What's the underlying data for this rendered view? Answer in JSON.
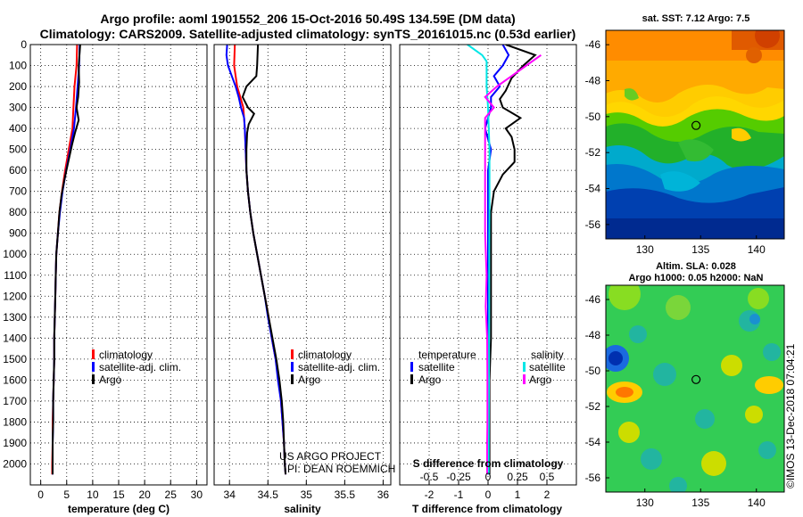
{
  "header": {
    "line1": "Argo profile: aoml 1901552_206 15-Oct-2016 50.49S 134.59E (DM data)",
    "line2": "Climatology: CARS2009. Satellite-adjusted climatology: synTS_20161015.nc (0.53d earlier)"
  },
  "depth_ticks": [
    "0",
    "100",
    "200",
    "300",
    "400",
    "500",
    "600",
    "700",
    "800",
    "900",
    "1000",
    "1100",
    "1200",
    "1300",
    "1400",
    "1500",
    "1600",
    "1700",
    "1800",
    "1900",
    "2000"
  ],
  "chart_data": [
    {
      "type": "line",
      "name": "temperature-panel",
      "xlabel": "temperature (deg C)",
      "ylabel": "",
      "xlim": [
        -2,
        32
      ],
      "ylim": [
        2100,
        0
      ],
      "xticks": [
        0,
        5,
        10,
        15,
        20,
        25,
        30
      ],
      "legend": {
        "placement": "lower-center",
        "entries": [
          "climatology",
          "satellite-adj. clim.",
          "Argo"
        ]
      },
      "series": [
        {
          "name": "climatology",
          "color": "#ff0000",
          "points": [
            [
              7.0,
              0
            ],
            [
              6.9,
              100
            ],
            [
              6.5,
              200
            ],
            [
              6.3,
              300
            ],
            [
              6.1,
              400
            ],
            [
              5.4,
              500
            ],
            [
              4.7,
              600
            ],
            [
              4.1,
              700
            ],
            [
              3.6,
              800
            ],
            [
              3.3,
              900
            ],
            [
              3.0,
              1000
            ],
            [
              2.9,
              1100
            ],
            [
              2.8,
              1200
            ],
            [
              2.7,
              1300
            ],
            [
              2.6,
              1400
            ],
            [
              2.6,
              1500
            ],
            [
              2.5,
              1600
            ],
            [
              2.4,
              1700
            ],
            [
              2.3,
              1800
            ],
            [
              2.3,
              1900
            ],
            [
              2.2,
              2000
            ],
            [
              2.2,
              2050
            ]
          ]
        },
        {
          "name": "satellite-adj. clim.",
          "color": "#0000ff",
          "points": [
            [
              7.5,
              0
            ],
            [
              7.4,
              100
            ],
            [
              7.1,
              200
            ],
            [
              6.8,
              300
            ],
            [
              6.4,
              400
            ],
            [
              5.7,
              500
            ],
            [
              4.9,
              600
            ],
            [
              4.2,
              700
            ],
            [
              3.7,
              800
            ],
            [
              3.3,
              900
            ],
            [
              3.0,
              1000
            ],
            [
              2.9,
              1100
            ],
            [
              2.8,
              1200
            ],
            [
              2.7,
              1300
            ],
            [
              2.6,
              1400
            ],
            [
              2.6,
              1500
            ],
            [
              2.5,
              1600
            ],
            [
              2.4,
              1700
            ],
            [
              2.4,
              1800
            ],
            [
              2.3,
              1900
            ],
            [
              2.3,
              2000
            ],
            [
              2.3,
              2050
            ]
          ]
        },
        {
          "name": "Argo",
          "color": "#000000",
          "points": [
            [
              7.6,
              0
            ],
            [
              7.3,
              100
            ],
            [
              7.4,
              180
            ],
            [
              7.2,
              250
            ],
            [
              6.9,
              300
            ],
            [
              7.3,
              360
            ],
            [
              6.6,
              420
            ],
            [
              6.0,
              480
            ],
            [
              5.3,
              560
            ],
            [
              4.6,
              640
            ],
            [
              4.0,
              720
            ],
            [
              3.6,
              800
            ],
            [
              3.3,
              900
            ],
            [
              3.0,
              1000
            ],
            [
              2.9,
              1100
            ],
            [
              2.8,
              1200
            ],
            [
              2.7,
              1300
            ],
            [
              2.6,
              1400
            ],
            [
              2.6,
              1500
            ],
            [
              2.5,
              1600
            ],
            [
              2.4,
              1700
            ],
            [
              2.4,
              1800
            ],
            [
              2.3,
              1900
            ],
            [
              2.3,
              2000
            ],
            [
              2.3,
              2050
            ]
          ]
        }
      ]
    },
    {
      "type": "line",
      "name": "salinity-panel",
      "xlabel": "salinity",
      "ylabel": "",
      "xlim": [
        33.8,
        36.1
      ],
      "ylim": [
        2100,
        0
      ],
      "xticks": [
        34,
        34.5,
        35,
        35.5,
        36
      ],
      "legend": {
        "placement": "lower-right",
        "entries": [
          "climatology",
          "satellite-adj. clim.",
          "Argo"
        ]
      },
      "annotations": [
        "US ARGO PROJECT",
        "PI: DEAN ROEMMICH"
      ],
      "series": [
        {
          "name": "climatology",
          "color": "#ff0000",
          "points": [
            [
              34.07,
              0
            ],
            [
              34.06,
              100
            ],
            [
              34.1,
              200
            ],
            [
              34.14,
              250
            ],
            [
              34.18,
              300
            ],
            [
              34.2,
              400
            ],
            [
              34.21,
              500
            ],
            [
              34.22,
              600
            ],
            [
              34.24,
              700
            ],
            [
              34.27,
              800
            ],
            [
              34.31,
              900
            ],
            [
              34.36,
              1000
            ],
            [
              34.41,
              1100
            ],
            [
              34.46,
              1200
            ],
            [
              34.51,
              1300
            ],
            [
              34.55,
              1400
            ],
            [
              34.6,
              1500
            ],
            [
              34.64,
              1600
            ],
            [
              34.67,
              1700
            ],
            [
              34.69,
              1800
            ],
            [
              34.71,
              1900
            ],
            [
              34.72,
              2000
            ],
            [
              34.73,
              2050
            ]
          ]
        },
        {
          "name": "satellite-adj. clim.",
          "color": "#0000ff",
          "points": [
            [
              33.97,
              0
            ],
            [
              33.96,
              50
            ],
            [
              33.98,
              100
            ],
            [
              34.03,
              150
            ],
            [
              34.08,
              200
            ],
            [
              34.12,
              250
            ],
            [
              34.15,
              300
            ],
            [
              34.19,
              350
            ],
            [
              34.2,
              400
            ],
            [
              34.21,
              500
            ],
            [
              34.22,
              600
            ],
            [
              34.24,
              700
            ],
            [
              34.27,
              800
            ],
            [
              34.31,
              900
            ],
            [
              34.36,
              1000
            ],
            [
              34.41,
              1100
            ],
            [
              34.46,
              1200
            ],
            [
              34.5,
              1300
            ],
            [
              34.55,
              1400
            ],
            [
              34.6,
              1500
            ],
            [
              34.63,
              1600
            ],
            [
              34.67,
              1700
            ],
            [
              34.69,
              1800
            ],
            [
              34.71,
              1900
            ],
            [
              34.72,
              2000
            ],
            [
              34.73,
              2050
            ]
          ]
        },
        {
          "name": "Argo",
          "color": "#000000",
          "points": [
            [
              34.37,
              0
            ],
            [
              34.36,
              100
            ],
            [
              34.35,
              150
            ],
            [
              34.22,
              200
            ],
            [
              34.17,
              250
            ],
            [
              34.24,
              300
            ],
            [
              34.32,
              330
            ],
            [
              34.25,
              380
            ],
            [
              34.23,
              420
            ],
            [
              34.22,
              500
            ],
            [
              34.22,
              600
            ],
            [
              34.24,
              700
            ],
            [
              34.27,
              800
            ],
            [
              34.31,
              900
            ],
            [
              34.36,
              1000
            ],
            [
              34.41,
              1100
            ],
            [
              34.46,
              1200
            ],
            [
              34.51,
              1300
            ],
            [
              34.56,
              1400
            ],
            [
              34.61,
              1500
            ],
            [
              34.65,
              1600
            ],
            [
              34.68,
              1700
            ],
            [
              34.7,
              1800
            ],
            [
              34.71,
              1900
            ],
            [
              34.72,
              2000
            ],
            [
              34.73,
              2050
            ]
          ]
        }
      ]
    },
    {
      "type": "line",
      "name": "difference-panel",
      "xlabel": "T difference from climatology",
      "ylabel": "",
      "xlim": [
        -3,
        3
      ],
      "ylim": [
        2100,
        0
      ],
      "xticks": [
        -2,
        -1,
        0,
        1,
        2
      ],
      "secondary_axis_label": "S difference from climatology",
      "secondary_ticks": [
        "-0.5",
        "-0.25",
        "0",
        "0.25",
        "0.5"
      ],
      "legend": {
        "placement": "lower-center",
        "groups": [
          "temperature",
          "salinity"
        ],
        "entries": [
          "satellite",
          "Argo",
          "satellite",
          "Argo"
        ]
      },
      "series": [
        {
          "name": "T satellite",
          "color": "#0000ff",
          "points": [
            [
              0.5,
              0
            ],
            [
              0.7,
              50
            ],
            [
              0.5,
              100
            ],
            [
              0.2,
              150
            ],
            [
              0.4,
              200
            ],
            [
              0.1,
              250
            ],
            [
              0.1,
              300
            ],
            [
              0.0,
              350
            ],
            [
              -0.1,
              400
            ],
            [
              0.0,
              450
            ],
            [
              0.1,
              500
            ],
            [
              0.0,
              600
            ],
            [
              0.0,
              700
            ],
            [
              0.0,
              800
            ],
            [
              0.0,
              1000
            ],
            [
              0.0,
              1200
            ],
            [
              0.0,
              1500
            ],
            [
              0.0,
              1800
            ],
            [
              0.0,
              2050
            ]
          ]
        },
        {
          "name": "T Argo",
          "color": "#000000",
          "points": [
            [
              0.6,
              0
            ],
            [
              1.6,
              50
            ],
            [
              1.2,
              100
            ],
            [
              0.8,
              160
            ],
            [
              0.6,
              220
            ],
            [
              0.4,
              260
            ],
            [
              0.5,
              300
            ],
            [
              1.1,
              350
            ],
            [
              0.6,
              400
            ],
            [
              0.8,
              440
            ],
            [
              0.9,
              500
            ],
            [
              0.9,
              560
            ],
            [
              0.5,
              620
            ],
            [
              0.2,
              700
            ],
            [
              0.1,
              800
            ],
            [
              0.1,
              1000
            ],
            [
              0.1,
              1200
            ],
            [
              0.1,
              1400
            ],
            [
              0.05,
              1600
            ],
            [
              0.05,
              1800
            ],
            [
              0.05,
              2050
            ]
          ]
        },
        {
          "name": "S satellite",
          "color": "#00e6e6",
          "points": [
            [
              -0.7,
              0
            ],
            [
              -0.2,
              50
            ],
            [
              -0.05,
              80
            ],
            [
              -0.05,
              200
            ],
            [
              0.0,
              300
            ],
            [
              0.05,
              500
            ],
            [
              0.05,
              800
            ],
            [
              0.04,
              1000
            ],
            [
              0.04,
              1300
            ],
            [
              0.03,
              1600
            ],
            [
              0.02,
              1900
            ],
            [
              0.02,
              2050
            ]
          ]
        },
        {
          "name": "S Argo",
          "color": "#ff00ff",
          "points": [
            [
              1.8,
              50
            ],
            [
              1.3,
              100
            ],
            [
              0.8,
              150
            ],
            [
              0.3,
              200
            ],
            [
              -0.1,
              250
            ],
            [
              0.2,
              300
            ],
            [
              -0.1,
              350
            ],
            [
              -0.1,
              420
            ],
            [
              -0.1,
              500
            ],
            [
              -0.1,
              700
            ],
            [
              -0.1,
              900
            ],
            [
              -0.05,
              1100
            ],
            [
              -0.08,
              1250
            ],
            [
              -0.03,
              1400
            ],
            [
              -0.02,
              1600
            ],
            [
              -0.02,
              1800
            ],
            [
              -0.03,
              1900
            ],
            [
              -0.03,
              2050
            ]
          ]
        }
      ]
    },
    {
      "type": "heatmap",
      "name": "sst-map",
      "title": "sat. SST: 7.12 Argo: 7.5",
      "xticks": [
        130,
        135,
        140
      ],
      "yticks": [
        -46,
        -48,
        -50,
        -52,
        -54,
        -56
      ],
      "xlim": [
        126.5,
        142.5
      ],
      "ylim": [
        -56.8,
        -45.2
      ],
      "marker": [
        134.59,
        -50.49
      ]
    },
    {
      "type": "heatmap",
      "name": "sla-map",
      "title": "Altim. SLA: 0.028",
      "subtitle": "Argo h1000: 0.05 h2000: NaN",
      "xticks": [
        130,
        135,
        140
      ],
      "yticks": [
        -46,
        -48,
        -50,
        -52,
        -54,
        -56
      ],
      "xlim": [
        126.5,
        142.5
      ],
      "ylim": [
        -56.8,
        -45.2
      ],
      "marker": [
        134.59,
        -50.49
      ]
    }
  ],
  "credit": "©IMOS 13-Dec-2018 07:04:21"
}
